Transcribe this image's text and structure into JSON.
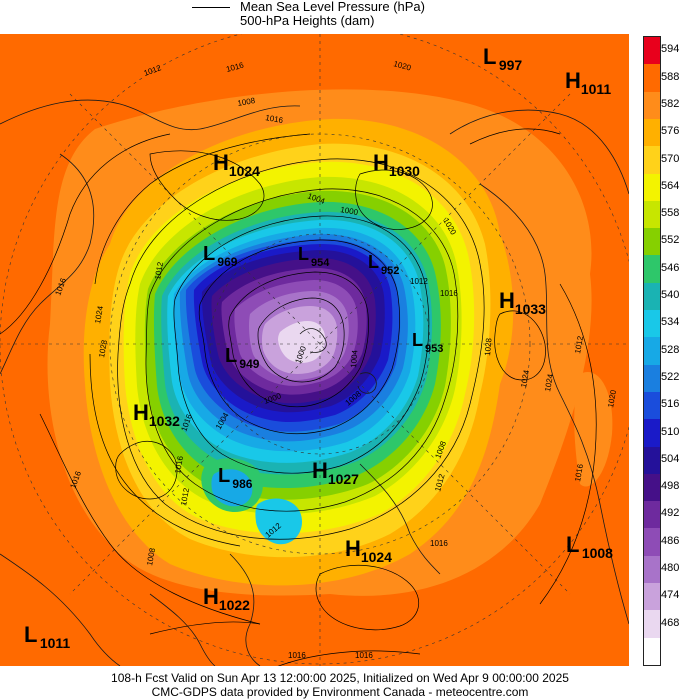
{
  "legend": {
    "mslp_label": "Mean Sea Level Pressure (hPa)",
    "heights_label": "500-hPa Heights (dam)"
  },
  "colorbar": {
    "ticks": [
      "594",
      "588",
      "582",
      "576",
      "570",
      "564",
      "558",
      "552",
      "546",
      "540",
      "534",
      "528",
      "522",
      "516",
      "510",
      "504",
      "498",
      "492",
      "486",
      "480",
      "474",
      "468"
    ],
    "colors": [
      "#e8001c",
      "#ff6a00",
      "#ff8c1a",
      "#ffb000",
      "#ffd21a",
      "#f3f300",
      "#c7e600",
      "#86d000",
      "#2ec76a",
      "#1ab3b3",
      "#19c8e8",
      "#17a9e6",
      "#1a7fe0",
      "#1a4ddc",
      "#1a1ac8",
      "#24119a",
      "#451088",
      "#6e2a9e",
      "#8e4cb6",
      "#a873c9",
      "#c9a2dc",
      "#ead8f0",
      "#ffffff"
    ]
  },
  "systems": [
    {
      "type": "L",
      "value": "997"
    },
    {
      "type": "H",
      "value": "1011"
    },
    {
      "type": "H",
      "value": "1024"
    },
    {
      "type": "H",
      "value": "1030"
    },
    {
      "type": "L",
      "value": "969"
    },
    {
      "type": "L",
      "value": "954"
    },
    {
      "type": "L",
      "value": "952"
    },
    {
      "type": "H",
      "value": "1033"
    },
    {
      "type": "L",
      "value": "953"
    },
    {
      "type": "L",
      "value": "949"
    },
    {
      "type": "H",
      "value": "1032"
    },
    {
      "type": "L",
      "value": "986"
    },
    {
      "type": "H",
      "value": "1027"
    },
    {
      "type": "H",
      "value": "1024"
    },
    {
      "type": "L",
      "value": "1008"
    },
    {
      "type": "H",
      "value": "1022"
    },
    {
      "type": "L",
      "value": "1011"
    }
  ],
  "isobar_labels": [
    "1012",
    "1016",
    "1020",
    "1016",
    "1004",
    "1000",
    "1008",
    "1012",
    "1016",
    "1024",
    "1020",
    "1028",
    "1016",
    "1012",
    "1000",
    "1008",
    "1024",
    "1016",
    "1004",
    "1012",
    "1020",
    "1016",
    "1008",
    "1028",
    "1024",
    "1016",
    "1012",
    "1012",
    "1016",
    "1016",
    "1016",
    "1008",
    "1012",
    "1004",
    "1016",
    "1000"
  ],
  "footer": {
    "line1": "108-h Fcst Valid on Sun Apr 13 12:00:00 2025, Initialized on Wed Apr  9 00:00:00 2025",
    "line2": "CMC-GDPS data provided by Environment Canada - meteocentre.com"
  }
}
